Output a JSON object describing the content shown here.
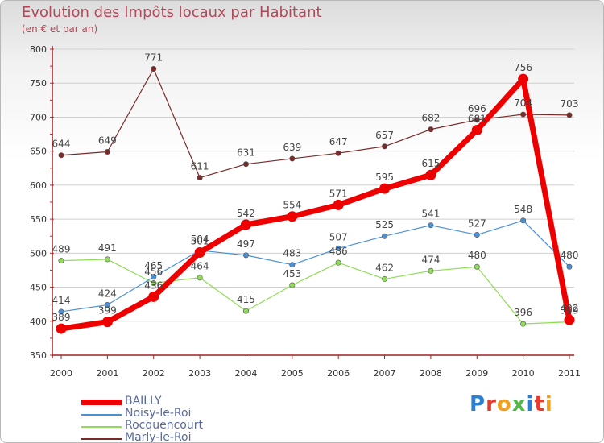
{
  "title": "Evolution des Impôts locaux par Habitant",
  "subtitle": "(en € et par an)",
  "logo": "Proxiti",
  "chart_data": {
    "type": "line",
    "title": "Evolution des Impôts locaux par Habitant",
    "subtitle": "(en € et par an)",
    "xlabel": "",
    "ylabel": "",
    "x": [
      "2000",
      "2001",
      "2002",
      "2003",
      "2004",
      "2005",
      "2006",
      "2007",
      "2008",
      "2009",
      "2010",
      "2011"
    ],
    "ylim": [
      350,
      800
    ],
    "yticks": [
      350,
      400,
      450,
      500,
      550,
      600,
      650,
      700,
      750,
      800
    ],
    "legend_position": "bottom-left",
    "series": [
      {
        "name": "BAILLY",
        "color": "#ee0000",
        "width": 7,
        "values": [
          389,
          399,
          436,
          501,
          542,
          554,
          571,
          595,
          615,
          681,
          756,
          402
        ]
      },
      {
        "name": "Noisy-le-Roi",
        "color": "#4a90d6",
        "width": 1.2,
        "values": [
          414,
          424,
          465,
          504,
          497,
          483,
          507,
          525,
          541,
          527,
          548,
          480
        ]
      },
      {
        "name": "Rocquencourt",
        "color": "#8fdc56",
        "width": 1.2,
        "values": [
          489,
          491,
          456,
          464,
          415,
          453,
          486,
          462,
          474,
          480,
          396,
          399
        ]
      },
      {
        "name": "Marly-le-Roi",
        "color": "#7b2a2a",
        "width": 1.2,
        "values": [
          644,
          649,
          771,
          611,
          631,
          639,
          647,
          657,
          682,
          696,
          704,
          703
        ]
      }
    ]
  }
}
